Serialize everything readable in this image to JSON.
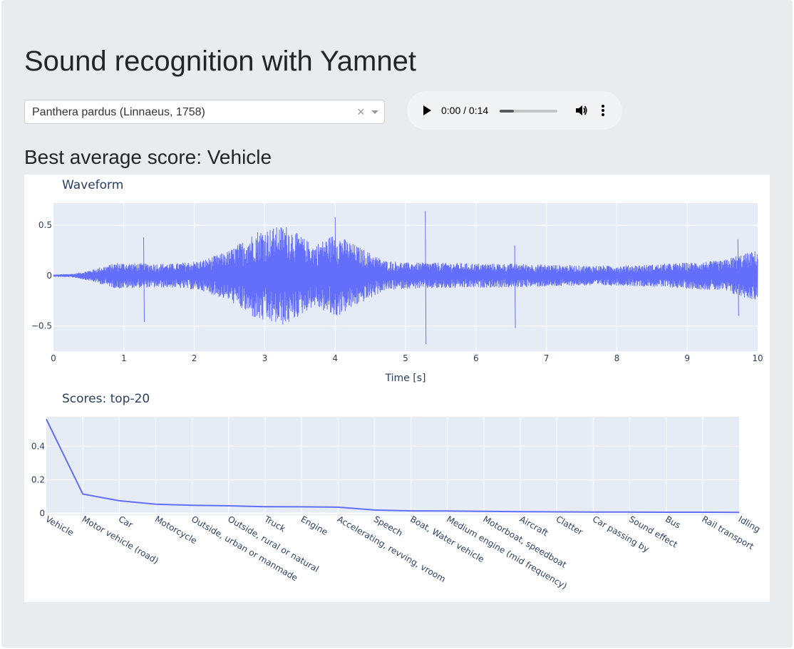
{
  "page": {
    "title": "Sound recognition with Yamnet",
    "subtitle": "Best average score: Vehicle"
  },
  "species_select": {
    "value": "Panthera pardus (Linnaeus, 1758)",
    "clear": "×"
  },
  "audio_player": {
    "time": "0:00 / 0:14",
    "progress": 0.25,
    "play_icon": "play-icon",
    "volume_icon": "volume-icon",
    "more_icon": "more-vert-icon"
  },
  "waveform_chart": {
    "title": "Waveform",
    "xlabel": "Time [s]",
    "xlim": [
      0,
      10
    ],
    "ylim": [
      -0.75,
      0.72
    ],
    "xticks": [
      0,
      1,
      2,
      3,
      4,
      5,
      6,
      7,
      8,
      9,
      10
    ],
    "yticks": [
      -0.5,
      0,
      0.5
    ],
    "ytick_labels": [
      "−0.5",
      "0",
      "0.5"
    ],
    "color": "#636efa",
    "envelope": {
      "t": [
        0,
        0.3,
        0.5,
        0.9,
        1.3,
        1.7,
        2.1,
        2.5,
        2.9,
        3.3,
        3.7,
        4.0,
        4.3,
        4.7,
        5.0,
        5.5,
        6.0,
        6.5,
        7.0,
        7.5,
        8.0,
        8.5,
        9.0,
        9.5,
        9.7,
        10
      ],
      "amp": [
        0.01,
        0.02,
        0.05,
        0.13,
        0.12,
        0.12,
        0.15,
        0.25,
        0.45,
        0.5,
        0.3,
        0.42,
        0.3,
        0.15,
        0.13,
        0.13,
        0.12,
        0.12,
        0.11,
        0.1,
        0.1,
        0.11,
        0.13,
        0.15,
        0.2,
        0.25
      ]
    },
    "spikes": [
      {
        "t": 1.28,
        "max": 0.38,
        "min": -0.46
      },
      {
        "t": 5.28,
        "max": 0.64,
        "min": -0.68
      },
      {
        "t": 6.55,
        "max": 0.3,
        "min": -0.52
      },
      {
        "t": 9.72,
        "max": 0.36,
        "min": -0.4
      },
      {
        "t": 4.0,
        "max": 0.58,
        "min": -0.35
      }
    ]
  },
  "chart_data": {
    "type": "line",
    "title": "Scores: top-20",
    "xlabel": "",
    "ylabel": "",
    "ylim": [
      -0.01,
      0.575
    ],
    "yticks": [
      0,
      0.2,
      0.4
    ],
    "categories": [
      "Vehicle",
      "Motor vehicle (road)",
      "Car",
      "Motorcycle",
      "Outside, urban or manmade",
      "Outside, rural or natural",
      "Truck",
      "Engine",
      "Accelerating, revving, vroom",
      "Speech",
      "Boat, Water vehicle",
      "Medium engine (mid frequency)",
      "Motorboat, speedboat",
      "Aircraft",
      "Clatter",
      "Car passing by",
      "Sound effect",
      "Bus",
      "Rail transport",
      "Idling"
    ],
    "values": [
      0.56,
      0.115,
      0.075,
      0.055,
      0.048,
      0.045,
      0.04,
      0.039,
      0.037,
      0.02,
      0.015,
      0.014,
      0.012,
      0.01,
      0.009,
      0.008,
      0.008,
      0.007,
      0.007,
      0.006
    ],
    "color": "#636efa",
    "grid": true
  }
}
